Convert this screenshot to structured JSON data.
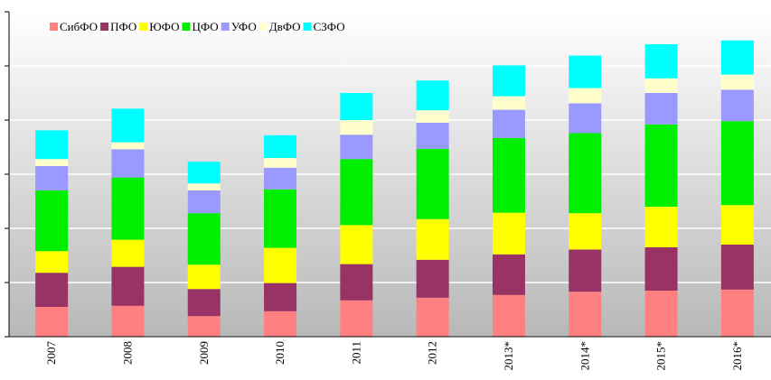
{
  "chart_data": {
    "type": "stacked_bar",
    "categories": [
      "2007",
      "2008",
      "2009",
      "2010",
      "2011",
      "2012",
      "2013*",
      "2014*",
      "2015*",
      "2016*"
    ],
    "series": [
      {
        "name": "СибФО",
        "color": "#ff8080",
        "values": [
          0.55,
          0.57,
          0.38,
          0.47,
          0.67,
          0.72,
          0.77,
          0.83,
          0.85,
          0.87
        ]
      },
      {
        "name": "ПФО",
        "color": "#993366",
        "values": [
          0.63,
          0.72,
          0.5,
          0.52,
          0.67,
          0.7,
          0.75,
          0.78,
          0.8,
          0.83
        ]
      },
      {
        "name": "ЮФО",
        "color": "#ffff00",
        "values": [
          0.4,
          0.5,
          0.45,
          0.65,
          0.72,
          0.75,
          0.77,
          0.67,
          0.75,
          0.73
        ]
      },
      {
        "name": "ЦФО",
        "color": "#00ee00",
        "values": [
          1.12,
          1.15,
          0.95,
          1.08,
          1.22,
          1.3,
          1.38,
          1.48,
          1.52,
          1.55
        ]
      },
      {
        "name": "УФО",
        "color": "#9999ff",
        "values": [
          0.45,
          0.52,
          0.42,
          0.4,
          0.45,
          0.48,
          0.52,
          0.55,
          0.58,
          0.58
        ]
      },
      {
        "name": "ДвФО",
        "color": "#ffffcc",
        "values": [
          0.13,
          0.13,
          0.13,
          0.18,
          0.27,
          0.23,
          0.25,
          0.28,
          0.27,
          0.28
        ]
      },
      {
        "name": "СЗФО",
        "color": "#00ffff",
        "values": [
          0.53,
          0.62,
          0.4,
          0.42,
          0.5,
          0.55,
          0.57,
          0.6,
          0.63,
          0.63
        ]
      }
    ],
    "ylim": [
      0,
      6
    ],
    "yticks": [
      0,
      1,
      2,
      3,
      4,
      5,
      6
    ],
    "grid": true,
    "legend": "top"
  }
}
